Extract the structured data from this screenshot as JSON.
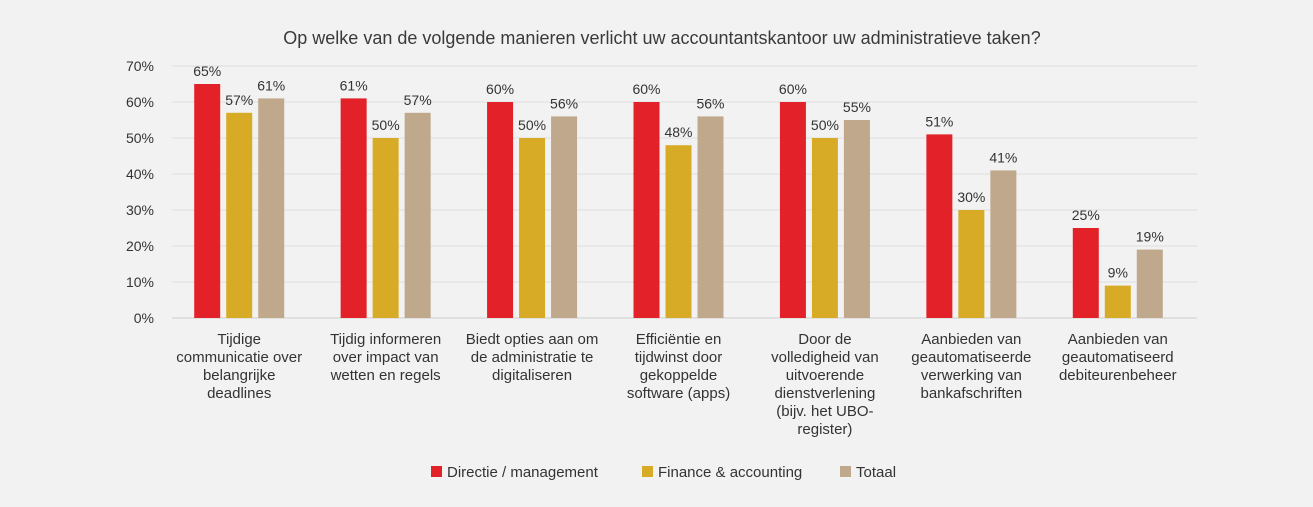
{
  "chart_data": {
    "type": "bar",
    "title": "Op welke van de volgende manieren verlicht uw accountantskantoor uw administratieve taken?",
    "categories": [
      [
        "Tijdige",
        "communicatie over",
        "belangrijke",
        "deadlines"
      ],
      [
        "Tijdig informeren",
        "over impact van",
        "wetten en regels"
      ],
      [
        "Biedt opties aan om",
        "de administratie te",
        "digitaliseren"
      ],
      [
        "Efficiëntie en",
        "tijdwinst door",
        "gekoppelde",
        "software (apps)"
      ],
      [
        "Door de",
        "volledigheid van",
        "uitvoerende",
        "dienstverlening",
        "(bijv. het UBO-",
        "register)"
      ],
      [
        "Aanbieden van",
        "geautomatiseerde",
        "verwerking van",
        "bankafschriften"
      ],
      [
        "Aanbieden van",
        "geautomatiseerd",
        "debiteurenbeheer"
      ]
    ],
    "series": [
      {
        "name": "Directie / management",
        "color": "#e32128",
        "values": [
          65,
          61,
          60,
          60,
          60,
          51,
          25
        ]
      },
      {
        "name": "Finance & accounting",
        "color": "#d8ab27",
        "values": [
          57,
          50,
          50,
          48,
          50,
          30,
          9
        ]
      },
      {
        "name": "Totaal",
        "color": "#bfa88b",
        "values": [
          61,
          57,
          56,
          56,
          55,
          41,
          19
        ]
      }
    ],
    "y_ticks": [
      "0%",
      "10%",
      "20%",
      "30%",
      "40%",
      "50%",
      "60%",
      "70%"
    ],
    "ylim": [
      0,
      70
    ],
    "value_suffix": "%",
    "grid": true,
    "legend_position": "bottom-center"
  }
}
